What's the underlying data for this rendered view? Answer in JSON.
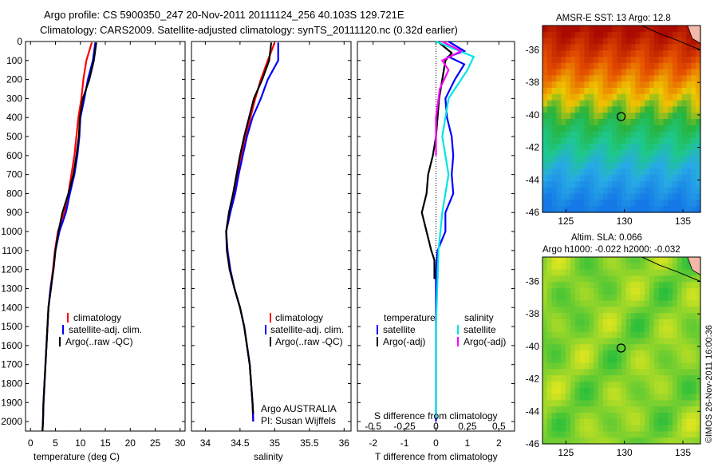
{
  "header": {
    "line1": "Argo profile: CS 5900350_247 20-Nov-2011 20111124_256 40.103S 129.721E",
    "line2": "Climatology: CARS2009. Satellite-adjusted climatology: synTS_20111120.nc (0.32d earlier)"
  },
  "colors": {
    "climatology": "#ff0000",
    "satellite": "#0000ff",
    "argo": "#000000",
    "sat_salinity": "#00e5e5",
    "argo_salinity": "#ff00ff"
  },
  "chart_data": [
    {
      "id": "temperature",
      "type": "line",
      "xlabel": "temperature (deg C)",
      "ylim": [
        2050,
        0
      ],
      "xlim": [
        -1,
        31
      ],
      "xticks": [
        0,
        5,
        10,
        15,
        20,
        25,
        30
      ],
      "yticks": [
        0,
        100,
        200,
        300,
        400,
        500,
        600,
        700,
        800,
        900,
        1000,
        1100,
        1200,
        1300,
        1400,
        1500,
        1600,
        1700,
        1800,
        1900,
        2000
      ],
      "legend": [
        "climatology",
        "satellite-adj. clim.",
        "Argo(..raw -QC)"
      ],
      "series": [
        {
          "name": "climatology",
          "color": "#ff0000",
          "points": [
            [
              12.3,
              5
            ],
            [
              11.2,
              100
            ],
            [
              10.6,
              200
            ],
            [
              10.2,
              300
            ],
            [
              9.6,
              400
            ],
            [
              9.2,
              500
            ],
            [
              8.8,
              600
            ],
            [
              8.2,
              700
            ],
            [
              7.6,
              800
            ],
            [
              6.8,
              900
            ],
            [
              5.5,
              1000
            ],
            [
              4.9,
              1100
            ],
            [
              4.5,
              1200
            ],
            [
              4.0,
              1300
            ],
            [
              3.6,
              1400
            ],
            [
              3.4,
              1500
            ],
            [
              3.2,
              1600
            ],
            [
              3.0,
              1700
            ],
            [
              2.8,
              1800
            ],
            [
              2.6,
              1900
            ],
            [
              2.5,
              2000
            ],
            [
              2.4,
              2050
            ]
          ]
        },
        {
          "name": "satellite-adj. clim.",
          "color": "#0000ff",
          "points": [
            [
              13.0,
              5
            ],
            [
              12.5,
              100
            ],
            [
              11.5,
              200
            ],
            [
              10.8,
              300
            ],
            [
              10.0,
              400
            ],
            [
              9.8,
              500
            ],
            [
              9.4,
              600
            ],
            [
              8.8,
              700
            ],
            [
              7.9,
              800
            ],
            [
              7.1,
              900
            ],
            [
              5.8,
              1000
            ],
            [
              5.0,
              1100
            ],
            [
              4.6,
              1200
            ],
            [
              4.0,
              1300
            ],
            [
              3.6,
              1400
            ],
            [
              3.4,
              1500
            ],
            [
              3.2,
              1600
            ],
            [
              3.0,
              1700
            ],
            [
              2.8,
              1800
            ],
            [
              2.6,
              1900
            ],
            [
              2.5,
              2000
            ],
            [
              2.4,
              2050
            ]
          ]
        },
        {
          "name": "Argo(..raw -QC)",
          "color": "#000000",
          "points": [
            [
              13.2,
              5
            ],
            [
              12.7,
              100
            ],
            [
              11.8,
              200
            ],
            [
              10.5,
              300
            ],
            [
              9.9,
              400
            ],
            [
              9.7,
              500
            ],
            [
              9.2,
              600
            ],
            [
              8.6,
              700
            ],
            [
              7.6,
              800
            ],
            [
              6.4,
              900
            ],
            [
              5.6,
              1000
            ],
            [
              5.0,
              1100
            ],
            [
              4.6,
              1200
            ],
            [
              4.1,
              1300
            ],
            [
              3.6,
              1400
            ],
            [
              3.4,
              1500
            ],
            [
              3.2,
              1600
            ],
            [
              3.0,
              1700
            ],
            [
              2.8,
              1800
            ],
            [
              2.6,
              1900
            ],
            [
              2.5,
              2000
            ],
            [
              2.4,
              2050
            ]
          ]
        }
      ]
    },
    {
      "id": "salinity",
      "type": "line",
      "xlabel": "salinity",
      "ylim": [
        2050,
        0
      ],
      "xlim": [
        33.8,
        36.1
      ],
      "xticks": [
        34,
        34.5,
        35,
        35.5,
        36
      ],
      "legend": [
        "climatology",
        "satellite-adj. clim.",
        "Argo(..raw -QC)"
      ],
      "annotation": [
        "Argo AUSTRALIA",
        "PI: Susan Wijffels"
      ],
      "series": [
        {
          "name": "climatology",
          "color": "#ff0000",
          "points": [
            [
              35.0,
              5
            ],
            [
              34.9,
              100
            ],
            [
              34.8,
              200
            ],
            [
              34.72,
              300
            ],
            [
              34.65,
              400
            ],
            [
              34.58,
              500
            ],
            [
              34.52,
              600
            ],
            [
              34.46,
              700
            ],
            [
              34.42,
              800
            ],
            [
              34.36,
              900
            ],
            [
              34.3,
              1000
            ],
            [
              34.32,
              1100
            ],
            [
              34.36,
              1200
            ],
            [
              34.42,
              1300
            ],
            [
              34.5,
              1400
            ],
            [
              34.56,
              1500
            ],
            [
              34.6,
              1600
            ],
            [
              34.64,
              1700
            ],
            [
              34.66,
              1800
            ],
            [
              34.68,
              1900
            ],
            [
              34.69,
              2000
            ]
          ]
        },
        {
          "name": "satellite-adj. clim.",
          "color": "#0000ff",
          "points": [
            [
              35.05,
              5
            ],
            [
              35.05,
              100
            ],
            [
              34.9,
              200
            ],
            [
              34.8,
              300
            ],
            [
              34.68,
              400
            ],
            [
              34.6,
              500
            ],
            [
              34.54,
              600
            ],
            [
              34.48,
              700
            ],
            [
              34.43,
              800
            ],
            [
              34.36,
              900
            ],
            [
              34.3,
              1000
            ],
            [
              34.32,
              1100
            ],
            [
              34.36,
              1200
            ],
            [
              34.42,
              1300
            ],
            [
              34.5,
              1400
            ],
            [
              34.56,
              1500
            ],
            [
              34.6,
              1600
            ],
            [
              34.64,
              1700
            ],
            [
              34.66,
              1800
            ],
            [
              34.68,
              1900
            ],
            [
              34.69,
              2000
            ]
          ]
        },
        {
          "name": "Argo(..raw -QC)",
          "color": "#000000",
          "points": [
            [
              34.95,
              5
            ],
            [
              34.92,
              100
            ],
            [
              34.82,
              200
            ],
            [
              34.7,
              300
            ],
            [
              34.63,
              400
            ],
            [
              34.56,
              500
            ],
            [
              34.5,
              600
            ],
            [
              34.45,
              700
            ],
            [
              34.4,
              800
            ],
            [
              34.34,
              900
            ],
            [
              34.3,
              1000
            ],
            [
              34.31,
              1100
            ],
            [
              34.35,
              1200
            ],
            [
              34.42,
              1300
            ],
            [
              34.5,
              1400
            ],
            [
              34.56,
              1500
            ],
            [
              34.6,
              1600
            ],
            [
              34.64,
              1700
            ],
            [
              34.66,
              1800
            ],
            [
              34.68,
              1900
            ],
            [
              34.69,
              1960
            ]
          ]
        }
      ]
    },
    {
      "id": "difference",
      "type": "line",
      "xlabel": "T difference from climatology",
      "top_label": "S difference from climatology",
      "ylim": [
        2050,
        0
      ],
      "xlim": [
        -2.5,
        2.5
      ],
      "xticks": [
        -2,
        -1,
        0,
        1,
        2
      ],
      "xticklabels": [
        "-2",
        "-1",
        "0",
        "1",
        "2"
      ],
      "top_ticks": [
        -0.5,
        -0.25,
        0,
        0.25,
        0.5
      ],
      "top_ticklabels": [
        "-0.5",
        "-0.25",
        "0",
        "0.25",
        "0.5"
      ],
      "legend_temperature": [
        "temperature",
        "satellite",
        "Argo(-adj)"
      ],
      "legend_salinity": [
        "salinity",
        "satellite",
        "Argo(-adj)"
      ],
      "series": [
        {
          "name": "temperature satellite",
          "color": "#0000ff",
          "points": [
            [
              0.4,
              0
            ],
            [
              0.9,
              50
            ],
            [
              0.4,
              80
            ],
            [
              0.9,
              120
            ],
            [
              0.6,
              200
            ],
            [
              0.3,
              300
            ],
            [
              0.35,
              400
            ],
            [
              0.5,
              500
            ],
            [
              0.55,
              600
            ],
            [
              0.5,
              700
            ],
            [
              0.55,
              800
            ],
            [
              0.3,
              900
            ],
            [
              0.3,
              1000
            ],
            [
              0.05,
              1100
            ],
            [
              0,
              1200
            ],
            [
              0,
              2000
            ]
          ]
        },
        {
          "name": "temperature Argo(-adj)",
          "color": "#000000",
          "points": [
            [
              0.05,
              0
            ],
            [
              0.5,
              60
            ],
            [
              0.3,
              100
            ],
            [
              0.2,
              200
            ],
            [
              0.1,
              300
            ],
            [
              0.05,
              400
            ],
            [
              0.0,
              500
            ],
            [
              -0.1,
              600
            ],
            [
              -0.25,
              700
            ],
            [
              -0.3,
              800
            ],
            [
              -0.45,
              900
            ],
            [
              -0.3,
              1000
            ],
            [
              -0.15,
              1100
            ],
            [
              -0.05,
              1150
            ],
            [
              -0.05,
              1250
            ]
          ]
        },
        {
          "name": "salinity satellite",
          "color": "#00e5e5",
          "points": [
            [
              0.0,
              0
            ],
            [
              0.3,
              80
            ],
            [
              0.25,
              150
            ],
            [
              0.1,
              300
            ],
            [
              0.05,
              500
            ],
            [
              0.1,
              700
            ],
            [
              0.05,
              900
            ],
            [
              0.02,
              1100
            ],
            [
              0,
              1500
            ],
            [
              0,
              1980
            ]
          ]
        },
        {
          "name": "salinity Argo(-adj)",
          "color": "#ff00ff",
          "points": [
            [
              0.05,
              0
            ],
            [
              0.2,
              50
            ],
            [
              0.05,
              100
            ],
            [
              0.1,
              150
            ],
            [
              0.03,
              250
            ],
            [
              0.0,
              400
            ],
            [
              0.0,
              600
            ]
          ]
        }
      ]
    },
    {
      "id": "sst-map",
      "type": "heatmap",
      "title": "AMSR-E SST: 13 Argo: 12.8",
      "xlim": [
        123,
        136.5
      ],
      "ylim": [
        -46,
        -34.5
      ],
      "xticks": [
        125,
        130,
        135
      ],
      "yticks": [
        -36,
        -38,
        -40,
        -42,
        -44,
        -46
      ],
      "marker": [
        129.721,
        -40.103
      ]
    },
    {
      "id": "sla-map",
      "type": "heatmap",
      "title": "Altim. SLA: 0.066",
      "subtitle": "Argo h1000: -0.022 h2000: -0.032",
      "xlim": [
        123,
        136.5
      ],
      "ylim": [
        -46,
        -34.5
      ],
      "xticks": [
        125,
        130,
        135
      ],
      "yticks": [
        -36,
        -38,
        -40,
        -42,
        -44,
        -46
      ],
      "marker": [
        129.721,
        -40.103
      ]
    }
  ],
  "footer": {
    "stamp": "©IMOS 26-Nov-2011 16:00:36"
  }
}
